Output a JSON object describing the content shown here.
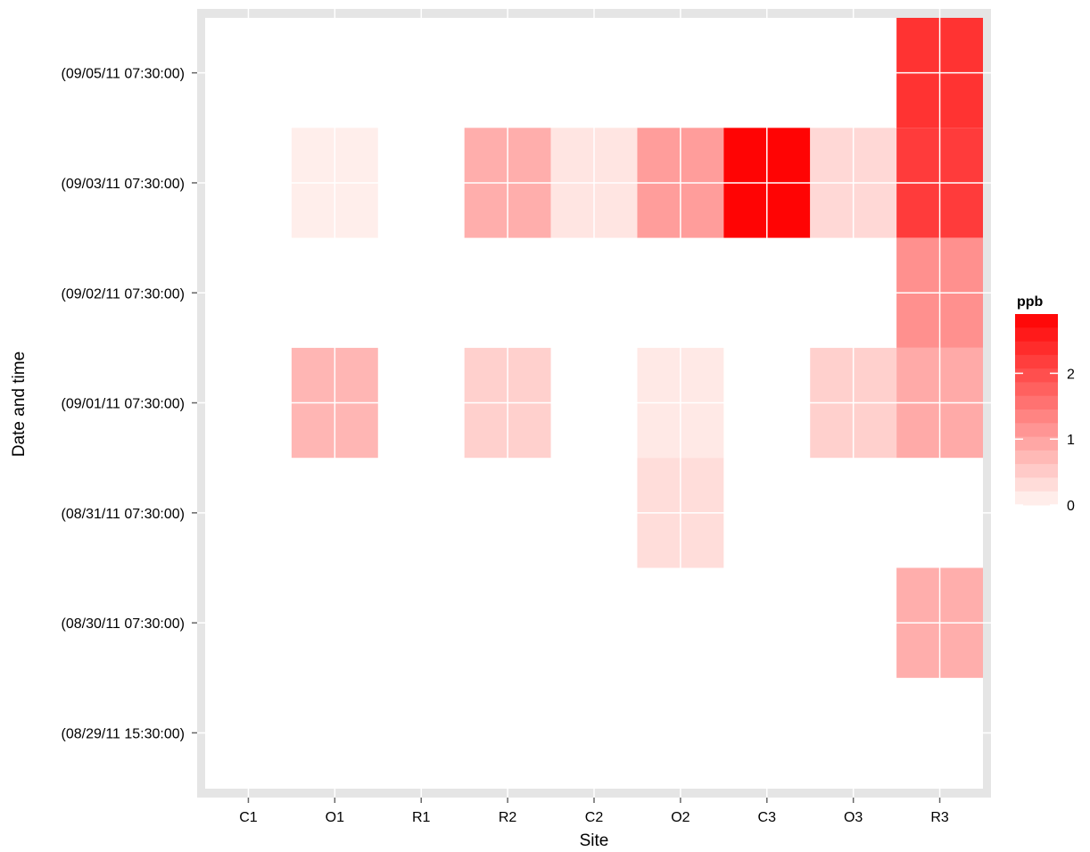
{
  "chart_data": {
    "type": "heatmap",
    "xlabel": "Site",
    "ylabel": "Date and time",
    "x_categories": [
      "C1",
      "O1",
      "R1",
      "R2",
      "C2",
      "O2",
      "C3",
      "O3",
      "R3"
    ],
    "y_categories": [
      "(08/29/11 15:30:00)",
      "(08/30/11 07:30:00)",
      "(08/31/11 07:30:00)",
      "(09/01/11 07:30:00)",
      "(09/02/11 07:30:00)",
      "(09/03/11 07:30:00)",
      "(09/05/11 07:30:00)"
    ],
    "cells": [
      {
        "x": "R3",
        "y": "(09/05/11 07:30:00)",
        "value": 2.3
      },
      {
        "x": "O1",
        "y": "(09/03/11 07:30:00)",
        "value": 0.1
      },
      {
        "x": "R2",
        "y": "(09/03/11 07:30:00)",
        "value": 0.85
      },
      {
        "x": "C2",
        "y": "(09/03/11 07:30:00)",
        "value": 0.2
      },
      {
        "x": "O2",
        "y": "(09/03/11 07:30:00)",
        "value": 1.05
      },
      {
        "x": "C3",
        "y": "(09/03/11 07:30:00)",
        "value": 2.85
      },
      {
        "x": "O3",
        "y": "(09/03/11 07:30:00)",
        "value": 0.35
      },
      {
        "x": "R3",
        "y": "(09/03/11 07:30:00)",
        "value": 2.2
      },
      {
        "x": "R3",
        "y": "(09/02/11 07:30:00)",
        "value": 1.2
      },
      {
        "x": "O1",
        "y": "(09/01/11 07:30:00)",
        "value": 0.75
      },
      {
        "x": "R2",
        "y": "(09/01/11 07:30:00)",
        "value": 0.45
      },
      {
        "x": "O2",
        "y": "(09/01/11 07:30:00)",
        "value": 0.15
      },
      {
        "x": "O3",
        "y": "(09/01/11 07:30:00)",
        "value": 0.45
      },
      {
        "x": "R3",
        "y": "(09/01/11 07:30:00)",
        "value": 0.9
      },
      {
        "x": "O2",
        "y": "(08/31/11 07:30:00)",
        "value": 0.3
      },
      {
        "x": "R3",
        "y": "(08/30/11 07:30:00)",
        "value": 0.85
      }
    ],
    "legend": {
      "title": "ppb",
      "ticks": [
        0,
        1,
        2
      ],
      "min": 0,
      "max": 2.9,
      "low_color": "#fff6f3",
      "high_color": "#ff0000",
      "placement": "right"
    },
    "panel_background": "#ffffff",
    "panel_border_color": "#e5e5e5",
    "grid": true,
    "grid_color": "#ffffff"
  }
}
